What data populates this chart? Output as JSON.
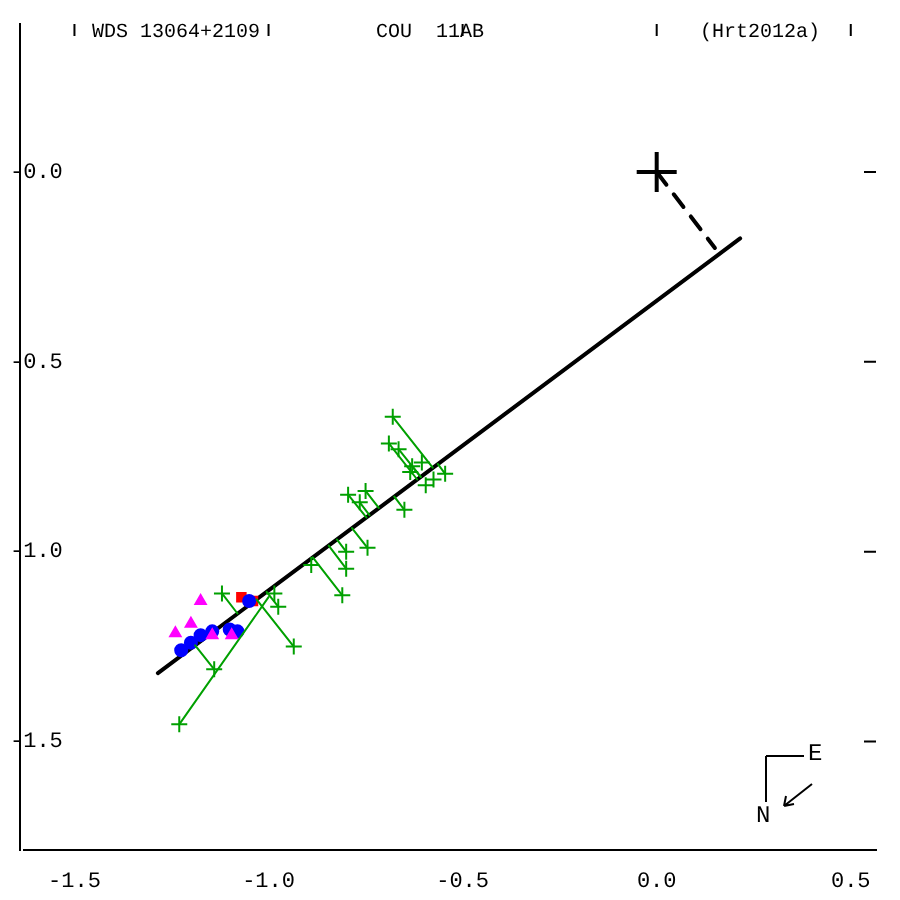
{
  "chart_data": {
    "type": "scatter",
    "title": "WDS 13064+2109",
    "subtitle": "COU  11AB",
    "annotations": [
      "(Hrt2012a)",
      "N",
      "E"
    ],
    "xlim": [
      -1.63,
      0.565
    ],
    "ylim": [
      -1.785,
      0.39
    ],
    "xticks": [
      {
        "value": -1.5,
        "label": "-1.5"
      },
      {
        "value": -1.0,
        "label": "-1.0"
      },
      -0.5,
      {
        "value": 0.0,
        "label": "0.0"
      },
      0.5
    ],
    "yticks": [
      {
        "value": 0.0,
        "label": "-0.0"
      },
      -0.5,
      {
        "value": -1.0,
        "label": "-1.0"
      },
      -1.5
    ],
    "grid": false,
    "legend": false,
    "series": [
      {
        "type": "line",
        "color": "#00a000",
        "marker": "none",
        "x": [
          -0.68,
          -0.577
        ],
        "values": [
          -0.645,
          -0.779
        ]
      },
      {
        "type": "line",
        "color": "#00a000",
        "marker": "none",
        "x": [
          -0.69,
          -0.617
        ],
        "values": [
          -0.715,
          -0.81
        ]
      },
      {
        "type": "line",
        "color": "#00a000",
        "marker": "none",
        "x": [
          -0.665,
          -0.608
        ],
        "values": [
          -0.73,
          -0.803
        ]
      },
      {
        "type": "line",
        "color": "#00a000",
        "marker": "none",
        "x": [
          -0.63,
          -0.608
        ],
        "values": [
          -0.775,
          -0.803
        ]
      },
      {
        "type": "line",
        "color": "#00a000",
        "marker": "none",
        "x": [
          -0.545,
          -0.564
        ],
        "values": [
          -0.795,
          -0.769
        ]
      },
      {
        "type": "line",
        "color": "#00a000",
        "marker": "none",
        "x": [
          -0.65,
          -0.676
        ],
        "values": [
          -0.89,
          -0.855
        ]
      },
      {
        "type": "line",
        "color": "#00a000",
        "marker": "none",
        "x": [
          -0.795,
          -0.748
        ],
        "values": [
          -0.85,
          -0.91
        ]
      },
      {
        "type": "line",
        "color": "#00a000",
        "marker": "none",
        "x": [
          -0.75,
          -0.716
        ],
        "values": [
          -0.84,
          -0.885
        ]
      },
      {
        "type": "line",
        "color": "#00a000",
        "marker": "none",
        "x": [
          -0.765,
          -0.74
        ],
        "values": [
          -0.87,
          -0.904
        ]
      },
      {
        "type": "line",
        "color": "#00a000",
        "marker": "none",
        "x": [
          -0.745,
          -0.785
        ],
        "values": [
          -0.99,
          -0.938
        ]
      },
      {
        "type": "line",
        "color": "#00a000",
        "marker": "none",
        "x": [
          -0.8,
          -0.824
        ],
        "values": [
          -1.0,
          -0.968
        ]
      },
      {
        "type": "line",
        "color": "#00a000",
        "marker": "none",
        "x": [
          -0.8,
          -0.845
        ],
        "values": [
          -1.045,
          -0.984
        ]
      },
      {
        "type": "line",
        "color": "#00a000",
        "marker": "none",
        "x": [
          -0.81,
          -0.886
        ],
        "values": [
          -1.115,
          -1.015
        ]
      },
      {
        "type": "line",
        "color": "#00a000",
        "marker": "none",
        "x": [
          -0.975,
          -1.005
        ],
        "values": [
          -1.145,
          -1.106
        ]
      },
      {
        "type": "line",
        "color": "#00a000",
        "marker": "none",
        "x": [
          -1.12,
          -1.08
        ],
        "values": [
          -1.11,
          -1.163
        ]
      },
      {
        "type": "line",
        "color": "#00a000",
        "marker": "none",
        "x": [
          -1.14,
          -1.189
        ],
        "values": [
          -1.31,
          -1.247
        ]
      },
      {
        "type": "line",
        "color": "#00a000",
        "marker": "none",
        "x": [
          -1.23,
          -1.0
        ],
        "values": [
          -1.455,
          -1.12
        ]
      },
      {
        "type": "line",
        "color": "#00a000",
        "marker": "none",
        "x": [
          -0.935,
          -1.031
        ],
        "values": [
          -1.25,
          -1.126
        ]
      },
      {
        "color": "#00a000",
        "marker": "cross",
        "x": [
          -0.68,
          -0.69,
          -0.665,
          -0.63,
          -0.605,
          -0.635,
          -0.595,
          -0.575,
          -0.545,
          -0.65,
          -0.795,
          -0.75,
          -0.765,
          -0.745,
          -0.8,
          -0.8,
          -0.81,
          -0.89,
          -0.975,
          -0.985,
          -1.12,
          -1.14,
          -1.23,
          -0.935
        ],
        "values": [
          -0.645,
          -0.715,
          -0.73,
          -0.775,
          -0.765,
          -0.79,
          -0.825,
          -0.81,
          -0.795,
          -0.89,
          -0.85,
          -0.84,
          -0.87,
          -0.99,
          -1.0,
          -1.045,
          -1.115,
          -1.035,
          -1.145,
          -1.11,
          -1.11,
          -1.31,
          -1.455,
          -1.25
        ]
      },
      {
        "color": "#ff00ff",
        "marker": "triangle",
        "x": [
          -1.175,
          -1.2,
          -1.24,
          -1.145,
          -1.095
        ],
        "values": [
          -1.13,
          -1.19,
          -1.215,
          -1.22,
          -1.22
        ]
      },
      {
        "color": "#0000ff",
        "marker": "circle",
        "x": [
          -1.225,
          -1.2,
          -1.175,
          -1.145,
          -1.1,
          -1.08,
          -1.05
        ],
        "values": [
          -1.26,
          -1.24,
          -1.22,
          -1.21,
          -1.205,
          -1.21,
          -1.13
        ]
      },
      {
        "color": "#ff0000",
        "marker": "square",
        "x": [
          -1.07,
          -1.04
        ],
        "values": [
          -1.12,
          -1.13
        ]
      },
      {
        "type": "line",
        "color": "#000000",
        "marker": "none",
        "line_style": "solid",
        "x": [
          -1.285,
          0.215
        ],
        "values": [
          -1.32,
          -0.175
        ]
      },
      {
        "type": "line",
        "color": "#000000",
        "marker": "none",
        "line_style": "dashed",
        "x": [
          0.0,
          0.15
        ],
        "values": [
          0.0,
          -0.2
        ]
      },
      {
        "color": "#000000",
        "marker": "cross",
        "x": [
          0.0
        ],
        "values": [
          0.0
        ]
      }
    ]
  }
}
